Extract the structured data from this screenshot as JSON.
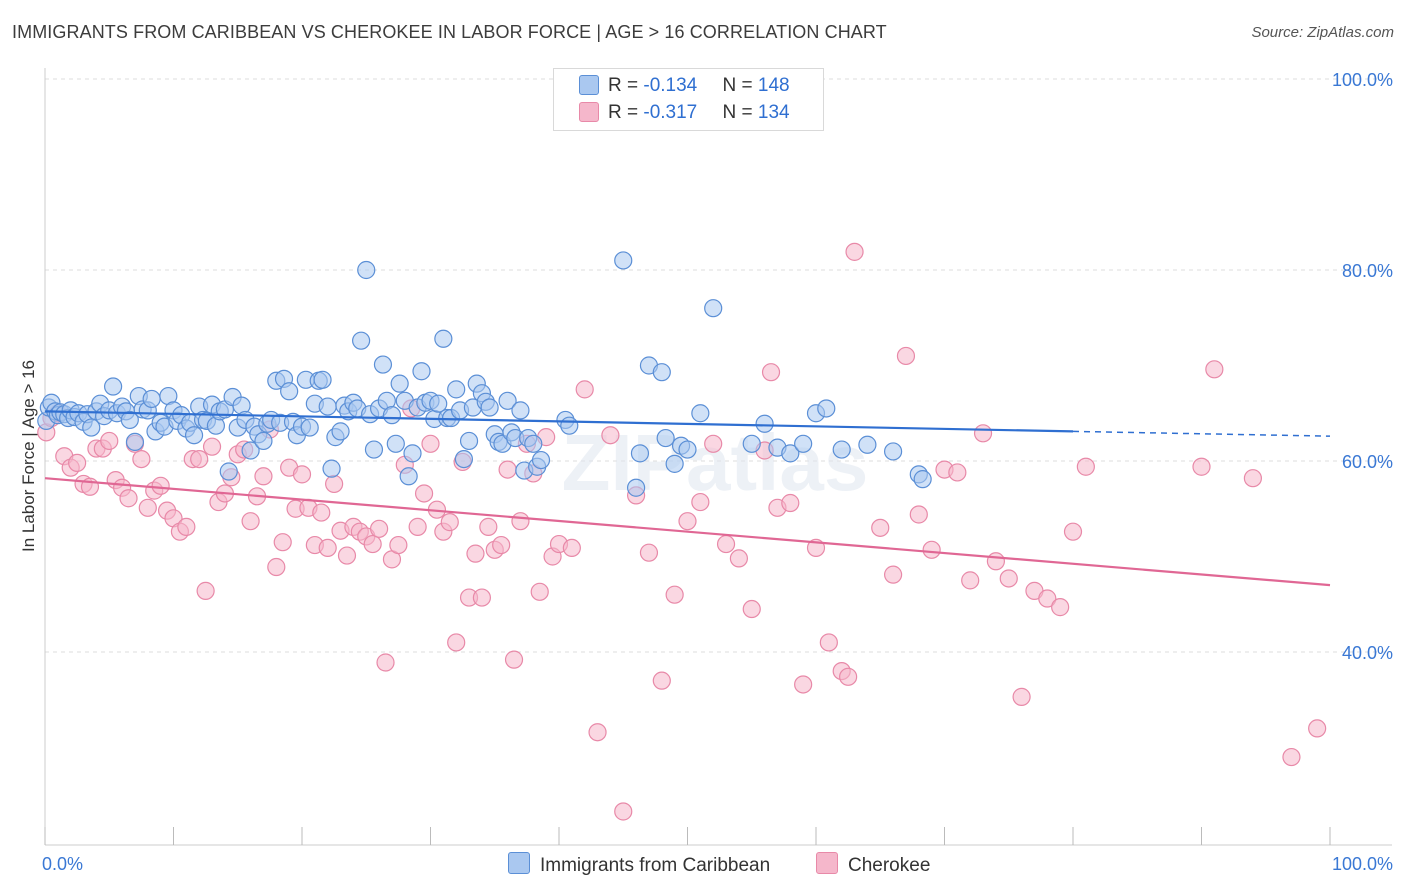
{
  "title": "IMMIGRANTS FROM CARIBBEAN VS CHEROKEE IN LABOR FORCE | AGE > 16 CORRELATION CHART",
  "source": "Source: ZipAtlas.com",
  "watermark": "ZIPatlas",
  "legend": {
    "r_label": "R = ",
    "n_label": "N = ",
    "series": [
      {
        "r": "-0.134",
        "n": "148"
      },
      {
        "r": "-0.317",
        "n": "134"
      }
    ]
  },
  "colors": {
    "blue_fill": "#aac8f0",
    "blue_stroke": "#5b8fd6",
    "blue_line": "#2f6fd1",
    "pink_fill": "#f5b7cb",
    "pink_stroke": "#e889a8",
    "pink_line": "#e06794",
    "tick_label": "#3a78d4",
    "grid": "#dddddd"
  },
  "chart_data": {
    "type": "scatter",
    "title": "IMMIGRANTS FROM CARIBBEAN VS CHEROKEE IN LABOR FORCE | AGE > 16 CORRELATION CHART",
    "xlabel": "",
    "ylabel": "In Labor Force | Age > 16",
    "xlim": [
      0,
      100
    ],
    "ylim": [
      20,
      102
    ],
    "x_tick_labels": [
      "0.0%",
      "100.0%"
    ],
    "y_ticks": [
      40,
      60,
      80,
      100
    ],
    "y_tick_labels": [
      "40.0%",
      "60.0%",
      "80.0%",
      "100.0%"
    ],
    "grid": true,
    "legend_placement": "top-center",
    "series": [
      {
        "name": "Immigrants from Caribbean",
        "color": "#aac8f0",
        "trend": {
          "x": [
            0,
            80,
            100
          ],
          "y": [
            65.2,
            63.1,
            62.6
          ],
          "solid_until": 80
        },
        "points": [
          [
            0.1,
            64.2
          ],
          [
            0.3,
            65.6
          ],
          [
            0.5,
            66.1
          ],
          [
            0.8,
            65.2
          ],
          [
            1.0,
            64.8
          ],
          [
            1.2,
            65.1
          ],
          [
            1.5,
            64.9
          ],
          [
            1.8,
            64.5
          ],
          [
            2.0,
            65.3
          ],
          [
            2.3,
            64.6
          ],
          [
            2.6,
            65.0
          ],
          [
            3.0,
            64.1
          ],
          [
            3.3,
            64.9
          ],
          [
            3.6,
            63.5
          ],
          [
            4.0,
            65.2
          ],
          [
            4.3,
            66.0
          ],
          [
            4.6,
            64.7
          ],
          [
            5.0,
            65.3
          ],
          [
            5.3,
            67.8
          ],
          [
            5.6,
            65.0
          ],
          [
            6.0,
            65.7
          ],
          [
            6.3,
            65.2
          ],
          [
            6.6,
            64.3
          ],
          [
            7.0,
            62.0
          ],
          [
            7.3,
            66.8
          ],
          [
            7.6,
            65.4
          ],
          [
            8.0,
            65.3
          ],
          [
            8.3,
            66.5
          ],
          [
            8.6,
            63.1
          ],
          [
            9.0,
            64.0
          ],
          [
            9.3,
            63.6
          ],
          [
            9.6,
            66.8
          ],
          [
            10.0,
            65.3
          ],
          [
            10.3,
            64.2
          ],
          [
            10.6,
            64.8
          ],
          [
            11.0,
            63.4
          ],
          [
            11.3,
            64.0
          ],
          [
            11.6,
            62.7
          ],
          [
            12.0,
            65.7
          ],
          [
            12.3,
            64.3
          ],
          [
            12.6,
            64.2
          ],
          [
            13.0,
            65.9
          ],
          [
            13.3,
            63.7
          ],
          [
            13.6,
            65.2
          ],
          [
            14.0,
            65.4
          ],
          [
            14.3,
            58.9
          ],
          [
            14.6,
            66.7
          ],
          [
            15.0,
            63.5
          ],
          [
            15.3,
            65.8
          ],
          [
            15.6,
            64.3
          ],
          [
            16.0,
            61.1
          ],
          [
            16.3,
            63.6
          ],
          [
            16.6,
            62.8
          ],
          [
            17.0,
            62.1
          ],
          [
            17.3,
            63.9
          ],
          [
            17.6,
            64.3
          ],
          [
            18.0,
            68.4
          ],
          [
            18.3,
            64.0
          ],
          [
            18.6,
            68.6
          ],
          [
            19.0,
            67.3
          ],
          [
            19.3,
            64.1
          ],
          [
            19.6,
            62.7
          ],
          [
            20.0,
            63.6
          ],
          [
            20.3,
            68.5
          ],
          [
            20.6,
            63.5
          ],
          [
            21.0,
            66.0
          ],
          [
            21.3,
            68.4
          ],
          [
            21.6,
            68.5
          ],
          [
            22.0,
            65.7
          ],
          [
            22.3,
            59.2
          ],
          [
            22.6,
            62.5
          ],
          [
            23.0,
            63.1
          ],
          [
            23.3,
            65.8
          ],
          [
            23.6,
            65.2
          ],
          [
            24.0,
            66.1
          ],
          [
            24.3,
            65.5
          ],
          [
            24.6,
            72.6
          ],
          [
            25.0,
            80.0
          ],
          [
            25.3,
            64.9
          ],
          [
            25.6,
            61.2
          ],
          [
            26.0,
            65.5
          ],
          [
            26.3,
            70.1
          ],
          [
            26.6,
            66.3
          ],
          [
            27.0,
            64.8
          ],
          [
            27.3,
            61.8
          ],
          [
            27.6,
            68.1
          ],
          [
            28.0,
            66.3
          ],
          [
            28.3,
            58.4
          ],
          [
            28.6,
            60.8
          ],
          [
            29.0,
            65.6
          ],
          [
            29.3,
            69.4
          ],
          [
            29.6,
            66.1
          ],
          [
            30.0,
            66.3
          ],
          [
            30.3,
            64.4
          ],
          [
            30.6,
            66.0
          ],
          [
            31.0,
            72.8
          ],
          [
            31.3,
            64.5
          ],
          [
            31.6,
            64.5
          ],
          [
            32.0,
            67.5
          ],
          [
            32.3,
            65.3
          ],
          [
            32.6,
            60.2
          ],
          [
            33.0,
            62.1
          ],
          [
            33.3,
            65.6
          ],
          [
            33.6,
            68.1
          ],
          [
            34.0,
            67.1
          ],
          [
            34.3,
            66.2
          ],
          [
            34.6,
            65.6
          ],
          [
            35.0,
            62.8
          ],
          [
            35.3,
            62.0
          ],
          [
            35.6,
            61.8
          ],
          [
            36.0,
            66.3
          ],
          [
            36.3,
            63.0
          ],
          [
            36.6,
            62.4
          ],
          [
            37.0,
            65.3
          ],
          [
            37.3,
            59.0
          ],
          [
            37.6,
            62.4
          ],
          [
            38.0,
            61.8
          ],
          [
            38.3,
            59.4
          ],
          [
            38.6,
            60.1
          ],
          [
            40.5,
            64.3
          ],
          [
            40.8,
            63.7
          ],
          [
            45.0,
            81.0
          ],
          [
            46.0,
            57.2
          ],
          [
            46.3,
            60.8
          ],
          [
            47.0,
            70.0
          ],
          [
            48.0,
            69.3
          ],
          [
            48.3,
            62.4
          ],
          [
            49.0,
            59.7
          ],
          [
            49.5,
            61.6
          ],
          [
            50.0,
            61.2
          ],
          [
            51.0,
            65.0
          ],
          [
            52.0,
            76.0
          ],
          [
            55.0,
            61.8
          ],
          [
            56.0,
            63.9
          ],
          [
            57.0,
            61.4
          ],
          [
            58.0,
            60.8
          ],
          [
            59.0,
            61.8
          ],
          [
            60.0,
            65.0
          ],
          [
            60.8,
            65.5
          ],
          [
            62.0,
            61.2
          ],
          [
            64.0,
            61.7
          ],
          [
            66.0,
            61.0
          ],
          [
            68.0,
            58.6
          ],
          [
            68.3,
            58.1
          ]
        ]
      },
      {
        "name": "Cherokee",
        "color": "#f5b7cb",
        "trend": {
          "x": [
            0,
            100
          ],
          "y": [
            58.2,
            47.0
          ]
        },
        "points": [
          [
            0.1,
            63.0
          ],
          [
            0.5,
            64.5
          ],
          [
            1.0,
            65.0
          ],
          [
            1.5,
            60.5
          ],
          [
            2.0,
            59.3
          ],
          [
            2.5,
            59.8
          ],
          [
            3.0,
            57.6
          ],
          [
            3.5,
            57.3
          ],
          [
            4.0,
            61.3
          ],
          [
            4.5,
            61.3
          ],
          [
            5.0,
            62.1
          ],
          [
            5.5,
            58.0
          ],
          [
            6.0,
            57.2
          ],
          [
            6.5,
            56.1
          ],
          [
            7.0,
            61.8
          ],
          [
            7.5,
            60.2
          ],
          [
            8.0,
            55.1
          ],
          [
            8.5,
            56.9
          ],
          [
            9.0,
            57.4
          ],
          [
            9.5,
            54.8
          ],
          [
            10.0,
            54.0
          ],
          [
            10.5,
            52.6
          ],
          [
            11.0,
            53.1
          ],
          [
            11.5,
            60.2
          ],
          [
            12.0,
            60.2
          ],
          [
            12.5,
            46.4
          ],
          [
            13.0,
            61.5
          ],
          [
            13.5,
            55.7
          ],
          [
            14.0,
            56.6
          ],
          [
            14.5,
            58.3
          ],
          [
            15.0,
            60.7
          ],
          [
            15.5,
            61.2
          ],
          [
            16.0,
            53.7
          ],
          [
            16.5,
            56.3
          ],
          [
            17.0,
            58.4
          ],
          [
            17.5,
            63.3
          ],
          [
            18.0,
            48.9
          ],
          [
            18.5,
            51.5
          ],
          [
            19.0,
            59.3
          ],
          [
            19.5,
            55.0
          ],
          [
            20.0,
            58.6
          ],
          [
            20.5,
            55.1
          ],
          [
            21.0,
            51.2
          ],
          [
            21.5,
            54.6
          ],
          [
            22.0,
            50.9
          ],
          [
            22.5,
            57.6
          ],
          [
            23.0,
            52.7
          ],
          [
            23.5,
            50.1
          ],
          [
            24.0,
            53.1
          ],
          [
            24.5,
            52.6
          ],
          [
            25.0,
            52.1
          ],
          [
            25.5,
            51.3
          ],
          [
            26.0,
            52.9
          ],
          [
            26.5,
            38.9
          ],
          [
            27.0,
            49.7
          ],
          [
            27.5,
            51.2
          ],
          [
            28.0,
            59.6
          ],
          [
            28.5,
            65.5
          ],
          [
            29.0,
            53.1
          ],
          [
            29.5,
            56.6
          ],
          [
            30.0,
            61.8
          ],
          [
            30.5,
            54.9
          ],
          [
            31.0,
            52.6
          ],
          [
            31.5,
            53.6
          ],
          [
            32.0,
            41.0
          ],
          [
            32.5,
            59.9
          ],
          [
            33.0,
            45.7
          ],
          [
            33.5,
            50.3
          ],
          [
            34.0,
            45.7
          ],
          [
            34.5,
            53.1
          ],
          [
            35.0,
            50.7
          ],
          [
            35.5,
            51.2
          ],
          [
            36.0,
            59.1
          ],
          [
            36.5,
            39.2
          ],
          [
            37.0,
            53.7
          ],
          [
            37.5,
            61.8
          ],
          [
            38.0,
            58.7
          ],
          [
            38.5,
            46.3
          ],
          [
            39.0,
            62.5
          ],
          [
            39.5,
            50.0
          ],
          [
            40.0,
            51.3
          ],
          [
            41.0,
            50.9
          ],
          [
            42.0,
            67.5
          ],
          [
            43.0,
            31.6
          ],
          [
            44.0,
            62.7
          ],
          [
            45.0,
            23.3
          ],
          [
            46.0,
            56.4
          ],
          [
            47.0,
            50.4
          ],
          [
            48.0,
            37.0
          ],
          [
            49.0,
            46.0
          ],
          [
            50.0,
            53.7
          ],
          [
            51.0,
            55.7
          ],
          [
            52.0,
            61.8
          ],
          [
            53.0,
            51.3
          ],
          [
            54.0,
            49.8
          ],
          [
            55.0,
            44.5
          ],
          [
            56.0,
            61.1
          ],
          [
            56.5,
            69.3
          ],
          [
            57.0,
            55.1
          ],
          [
            58.0,
            55.6
          ],
          [
            59.0,
            36.6
          ],
          [
            60.0,
            50.9
          ],
          [
            61.0,
            41.0
          ],
          [
            62.0,
            38.0
          ],
          [
            62.5,
            37.4
          ],
          [
            63.0,
            81.9
          ],
          [
            65.0,
            53.0
          ],
          [
            66.0,
            48.1
          ],
          [
            67.0,
            71.0
          ],
          [
            68.0,
            54.4
          ],
          [
            69.0,
            50.7
          ],
          [
            70.0,
            59.1
          ],
          [
            71.0,
            58.8
          ],
          [
            72.0,
            47.5
          ],
          [
            73.0,
            62.9
          ],
          [
            74.0,
            49.5
          ],
          [
            75.0,
            47.7
          ],
          [
            76.0,
            35.3
          ],
          [
            77.0,
            46.4
          ],
          [
            78.0,
            45.6
          ],
          [
            79.0,
            44.7
          ],
          [
            80.0,
            52.6
          ],
          [
            81.0,
            59.4
          ],
          [
            90.0,
            59.4
          ],
          [
            91.0,
            69.6
          ],
          [
            94.0,
            58.2
          ],
          [
            97.0,
            29.0
          ],
          [
            99.0,
            32.0
          ]
        ]
      }
    ]
  },
  "bottom_legend": [
    "Immigrants from Caribbean",
    "Cherokee"
  ]
}
